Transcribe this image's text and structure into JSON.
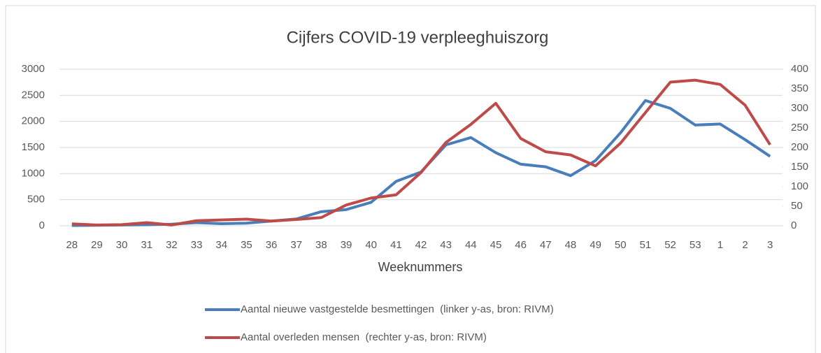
{
  "chart_data": {
    "type": "line",
    "title": "Cijfers COVID-19 verpleeghuiszorg",
    "x_label": "Weeknummers",
    "categories": [
      "28",
      "29",
      "30",
      "31",
      "32",
      "33",
      "34",
      "35",
      "36",
      "37",
      "38",
      "39",
      "40",
      "41",
      "42",
      "43",
      "44",
      "45",
      "46",
      "47",
      "48",
      "49",
      "50",
      "51",
      "52",
      "53",
      "1",
      "2",
      "3"
    ],
    "series": [
      {
        "name": "Aantal nieuwe vastgestelde besmettingen  (linker y-as, bron: RIVM)",
        "color": "#4a7ebb",
        "axis": "y",
        "values": [
          5,
          10,
          15,
          20,
          30,
          60,
          40,
          50,
          90,
          130,
          270,
          310,
          450,
          850,
          1030,
          1550,
          1690,
          1400,
          1180,
          1130,
          960,
          1250,
          1780,
          2400,
          2250,
          1930,
          1950,
          1650,
          1330
        ]
      },
      {
        "name": "Aantal overleden mensen  (rechter y-as, bron: RIVM)",
        "color": "#be4b48",
        "axis": "y2",
        "values": [
          5,
          2,
          3,
          8,
          2,
          13,
          15,
          17,
          12,
          16,
          21,
          53,
          71,
          79,
          136,
          213,
          259,
          313,
          223,
          189,
          181,
          153,
          211,
          289,
          367,
          372,
          361,
          308,
          207
        ]
      }
    ],
    "ylim": [
      0,
      3000
    ],
    "yticks": [
      0,
      500,
      1000,
      1500,
      2000,
      2500,
      3000
    ],
    "y2lim": [
      0,
      400
    ],
    "y2ticks": [
      0,
      50,
      100,
      150,
      200,
      250,
      300,
      350,
      400
    ],
    "grid": true,
    "legend": "bottom"
  }
}
